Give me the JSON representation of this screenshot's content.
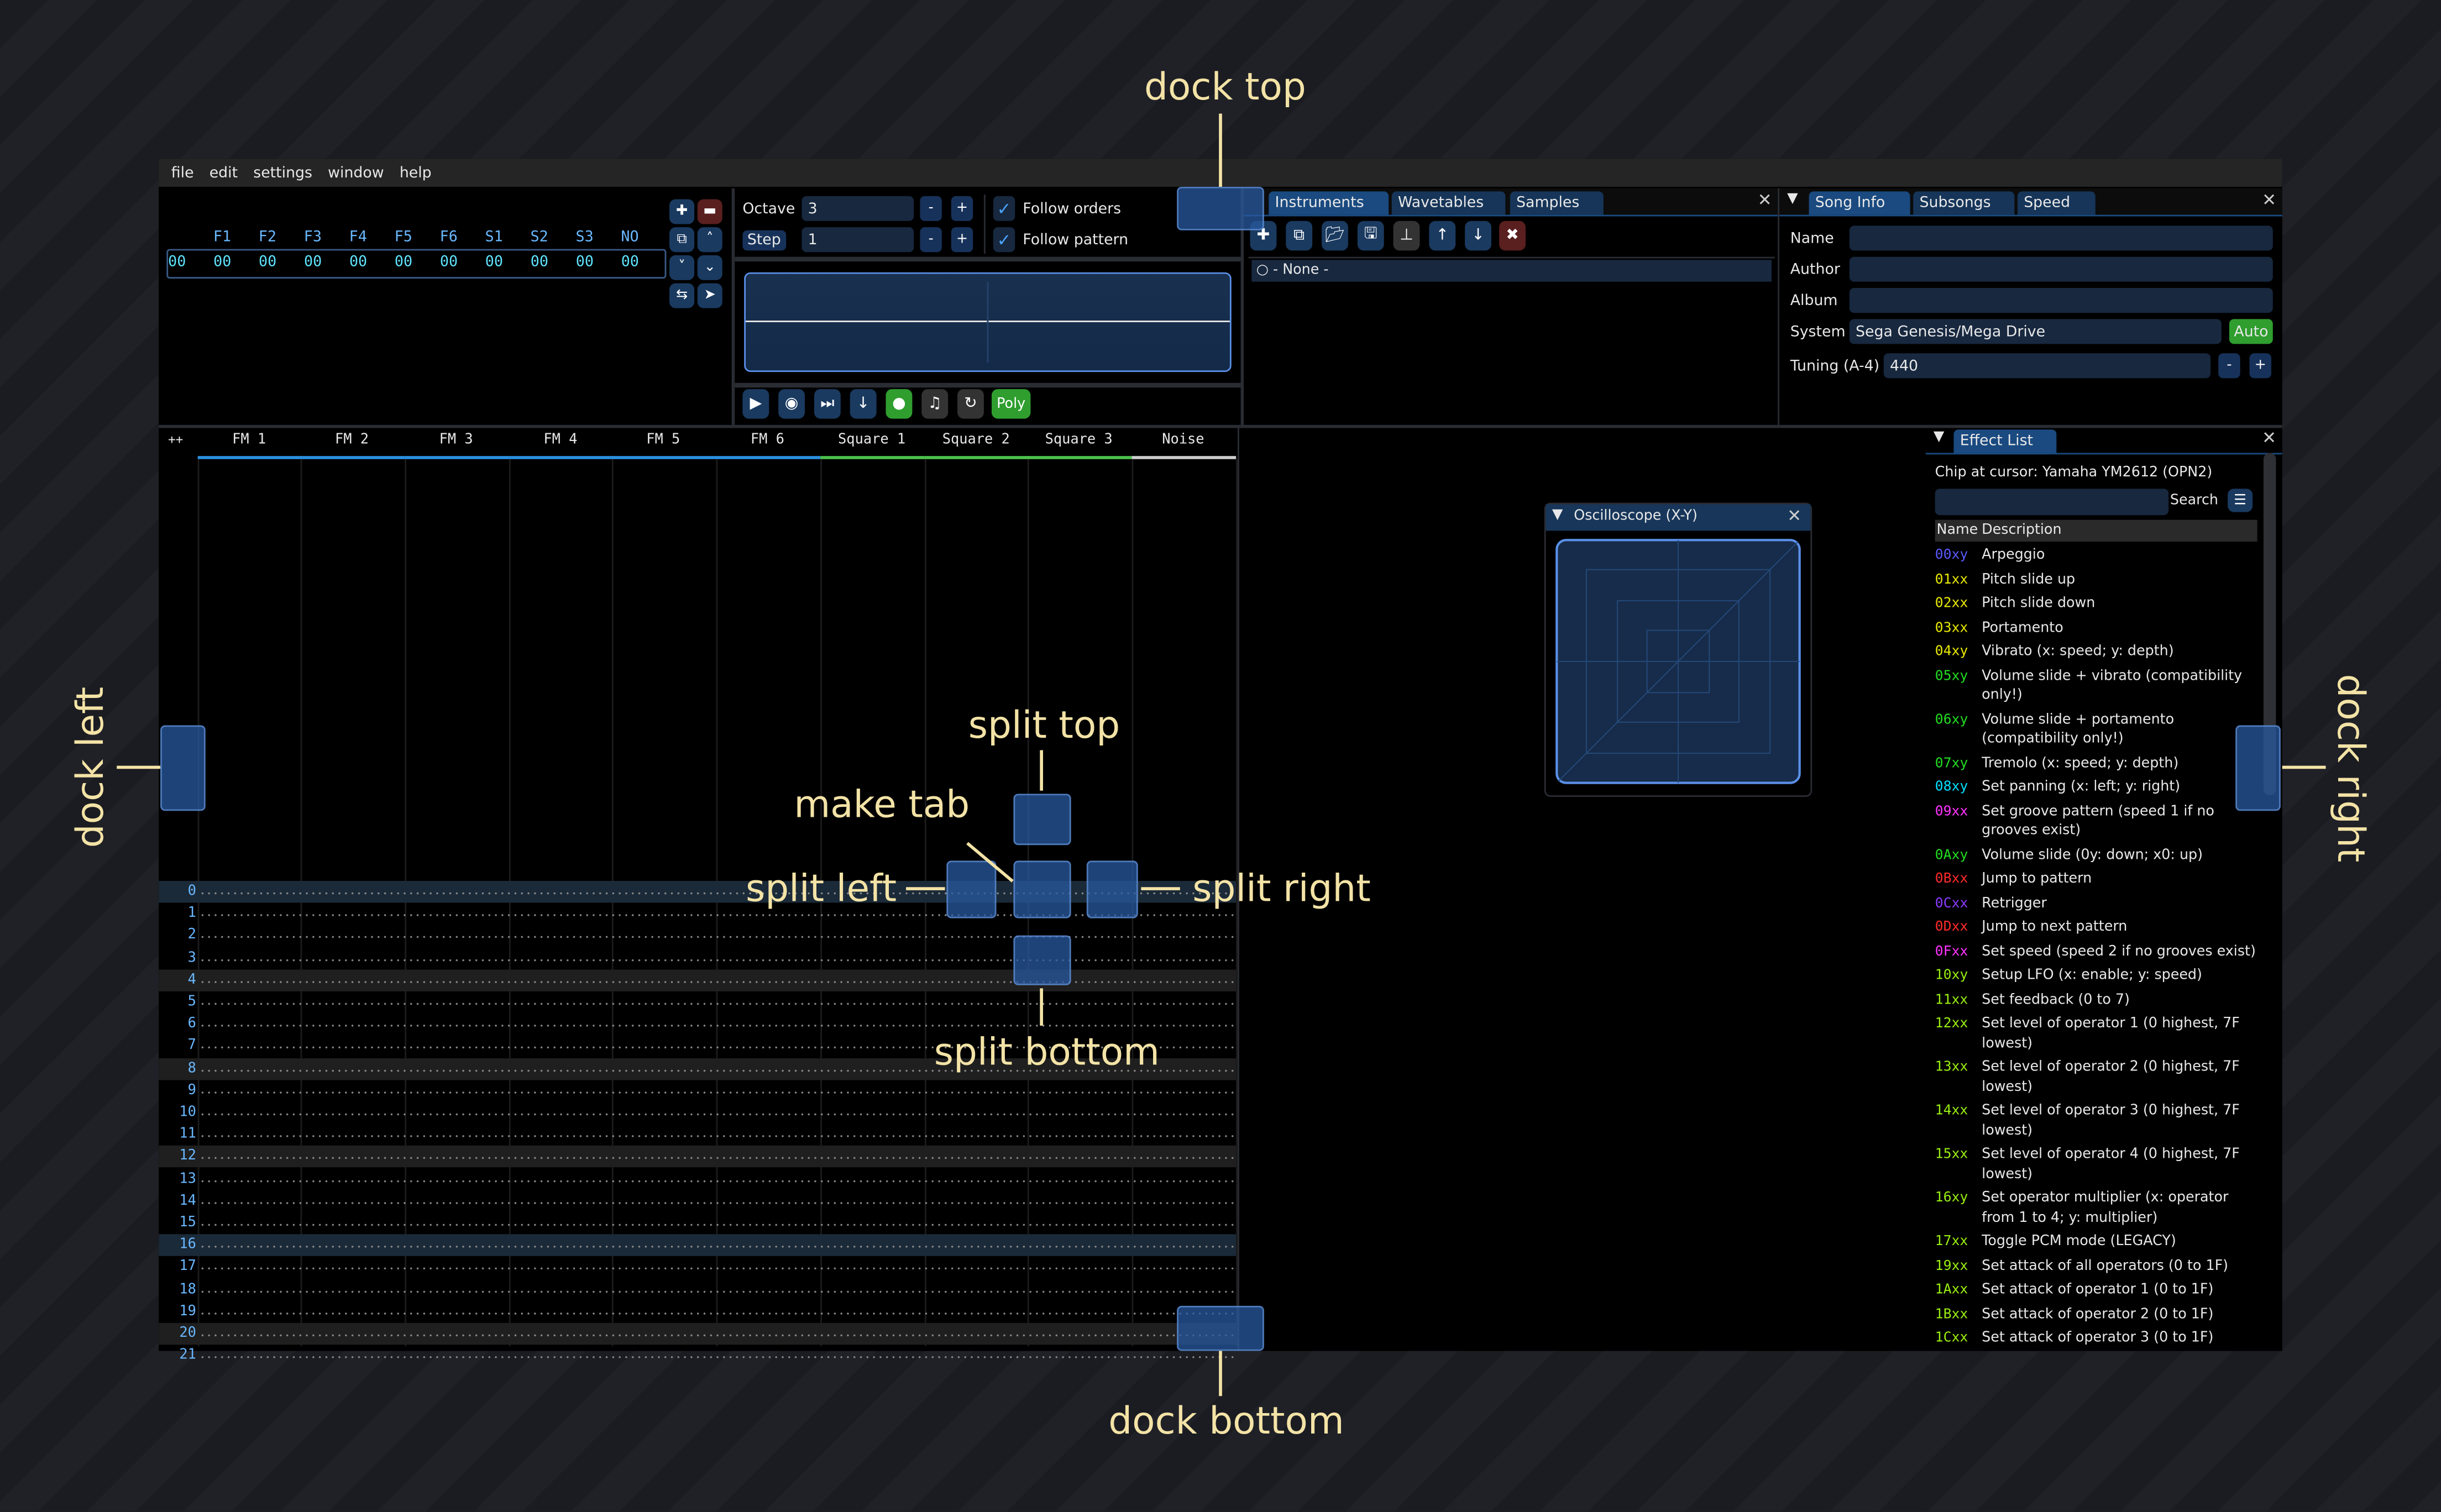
{
  "menu": [
    "file",
    "edit",
    "settings",
    "window",
    "help"
  ],
  "orders": {
    "channels": [
      "F1",
      "F2",
      "F3",
      "F4",
      "F5",
      "F6",
      "S1",
      "S2",
      "S3",
      "NO"
    ],
    "row": [
      "00",
      "00",
      "00",
      "00",
      "00",
      "00",
      "00",
      "00",
      "00",
      "00",
      "00"
    ]
  },
  "edit_controls": {
    "octave_label": "Octave",
    "octave_value": "3",
    "step_label": "Step",
    "step_value": "1",
    "minus": "-",
    "plus": "+",
    "follow_orders": "Follow orders",
    "follow_orders_checked": true,
    "follow_pattern": "Follow pattern",
    "follow_pattern_checked": true
  },
  "playback": {
    "poly_label": "Poly"
  },
  "instruments": {
    "tabs": [
      "Instruments",
      "Wavetables",
      "Samples"
    ],
    "items": [
      "- None -"
    ]
  },
  "song_info": {
    "tabs": [
      "Song Info",
      "Subsongs",
      "Speed"
    ],
    "name_label": "Name",
    "name_value": "",
    "author_label": "Author",
    "author_value": "",
    "album_label": "Album",
    "album_value": "",
    "system_label": "System",
    "system_value": "Sega Genesis/Mega Drive",
    "auto_label": "Auto",
    "tuning_label": "Tuning (A-4)",
    "tuning_value": "440"
  },
  "pattern": {
    "corner": "++",
    "channels": [
      {
        "name": "FM 1",
        "color": "#2a8fe0"
      },
      {
        "name": "FM 2",
        "color": "#2a8fe0"
      },
      {
        "name": "FM 3",
        "color": "#2a8fe0"
      },
      {
        "name": "FM 4",
        "color": "#2a8fe0"
      },
      {
        "name": "FM 5",
        "color": "#2a8fe0"
      },
      {
        "name": "FM 6",
        "color": "#2a8fe0"
      },
      {
        "name": "Square 1",
        "color": "#4cc24c"
      },
      {
        "name": "Square 2",
        "color": "#4cc24c"
      },
      {
        "name": "Square 3",
        "color": "#4cc24c"
      },
      {
        "name": "Noise",
        "color": "#cccccc"
      }
    ],
    "rows": [
      "0",
      "1",
      "2",
      "3",
      "4",
      "5",
      "6",
      "7",
      "8",
      "9",
      "10",
      "11",
      "12",
      "13",
      "14",
      "15",
      "16",
      "17",
      "18",
      "19",
      "20",
      "21"
    ]
  },
  "oscilloscope": {
    "title": "Oscilloscope (X-Y)"
  },
  "effect_list": {
    "tab": "Effect List",
    "chip": "Chip at cursor: Yamaha YM2612 (OPN2)",
    "search_placeholder": "",
    "search_label": "Search",
    "col_name": "Name",
    "col_desc": "Description",
    "items": [
      {
        "code": "00xy",
        "desc": "Arpeggio",
        "color": "#5a5aff"
      },
      {
        "code": "01xx",
        "desc": "Pitch slide up",
        "color": "#e8e800"
      },
      {
        "code": "02xx",
        "desc": "Pitch slide down",
        "color": "#e8e800"
      },
      {
        "code": "03xx",
        "desc": "Portamento",
        "color": "#e8e800"
      },
      {
        "code": "04xy",
        "desc": "Vibrato (x: speed; y: depth)",
        "color": "#e8e800"
      },
      {
        "code": "05xy",
        "desc": "Volume slide + vibrato (compatibility only!)",
        "color": "#22dd22"
      },
      {
        "code": "06xy",
        "desc": "Volume slide + portamento (compatibility only!)",
        "color": "#22dd22"
      },
      {
        "code": "07xy",
        "desc": "Tremolo (x: speed; y: depth)",
        "color": "#22dd22"
      },
      {
        "code": "08xy",
        "desc": "Set panning (x: left; y: right)",
        "color": "#00e0ff"
      },
      {
        "code": "09xx",
        "desc": "Set groove pattern (speed 1 if no grooves exist)",
        "color": "#ff33ff"
      },
      {
        "code": "0Axy",
        "desc": "Volume slide (0y: down; x0: up)",
        "color": "#22dd22"
      },
      {
        "code": "0Bxx",
        "desc": "Jump to pattern",
        "color": "#ff2a2a"
      },
      {
        "code": "0Cxx",
        "desc": "Retrigger",
        "color": "#8a3aff"
      },
      {
        "code": "0Dxx",
        "desc": "Jump to next pattern",
        "color": "#ff2a2a"
      },
      {
        "code": "0Fxx",
        "desc": "Set speed (speed 2 if no grooves exist)",
        "color": "#ff33ff"
      },
      {
        "code": "10xy",
        "desc": "Setup LFO (x: enable; y: speed)",
        "color": "#99ee11"
      },
      {
        "code": "11xx",
        "desc": "Set feedback (0 to 7)",
        "color": "#99ee11"
      },
      {
        "code": "12xx",
        "desc": "Set level of operator 1 (0 highest, 7F lowest)",
        "color": "#99ee11"
      },
      {
        "code": "13xx",
        "desc": "Set level of operator 2 (0 highest, 7F lowest)",
        "color": "#99ee11"
      },
      {
        "code": "14xx",
        "desc": "Set level of operator 3 (0 highest, 7F lowest)",
        "color": "#99ee11"
      },
      {
        "code": "15xx",
        "desc": "Set level of operator 4 (0 highest, 7F lowest)",
        "color": "#99ee11"
      },
      {
        "code": "16xy",
        "desc": "Set operator multiplier (x: operator from 1 to 4; y: multiplier)",
        "color": "#99ee11"
      },
      {
        "code": "17xx",
        "desc": "Toggle PCM mode (LEGACY)",
        "color": "#99ee11"
      },
      {
        "code": "19xx",
        "desc": "Set attack of all operators (0 to 1F)",
        "color": "#99ee11"
      },
      {
        "code": "1Axx",
        "desc": "Set attack of operator 1 (0 to 1F)",
        "color": "#99ee11"
      },
      {
        "code": "1Bxx",
        "desc": "Set attack of operator 2 (0 to 1F)",
        "color": "#99ee11"
      },
      {
        "code": "1Cxx",
        "desc": "Set attack of operator 3 (0 to 1F)",
        "color": "#99ee11"
      }
    ]
  },
  "annotations": {
    "dock_top": "dock top",
    "dock_bottom": "dock bottom",
    "dock_left": "dock left",
    "dock_right": "dock right",
    "split_top": "split top",
    "split_bottom": "split bottom",
    "split_left": "split left",
    "split_right": "split right",
    "make_tab": "make tab"
  },
  "colors": {
    "accent": "#1a4a80",
    "annotation": "#f3e3a6",
    "danger": "#6a2222",
    "success": "#2f9e2f"
  }
}
